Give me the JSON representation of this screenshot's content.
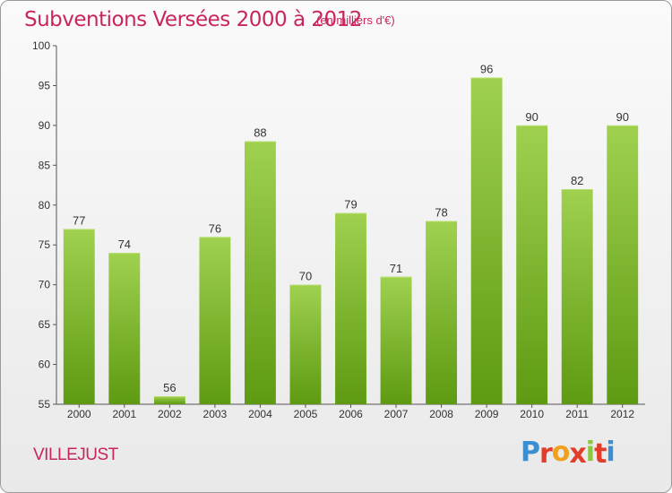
{
  "header": {
    "title": "Subventions Versées 2000 à 2012",
    "subtitle": "(en milliers d'€)"
  },
  "footer": {
    "commune": "VILLEJUST",
    "logo_letters": [
      "P",
      "r",
      "o",
      "x",
      "i",
      "t",
      "i"
    ],
    "logo_colors": [
      "#3b8fd0",
      "#e23c2a",
      "#f0a01e",
      "#e23c2a",
      "#8cc63f",
      "#e23c2a",
      "#3b8fd0"
    ]
  },
  "colors": {
    "bar_top": "#9fd14f",
    "bar_bottom": "#5e9a12",
    "text_accent": "#c8265a"
  },
  "chart_data": {
    "type": "bar",
    "title": "Subventions Versées 2000 à 2012",
    "subtitle": "(en milliers d'€)",
    "xlabel": "",
    "ylabel": "",
    "categories": [
      "2000",
      "2001",
      "2002",
      "2003",
      "2004",
      "2005",
      "2006",
      "2007",
      "2008",
      "2009",
      "2010",
      "2011",
      "2012"
    ],
    "values": [
      77,
      74,
      56,
      76,
      88,
      70,
      79,
      71,
      78,
      96,
      90,
      82,
      90
    ],
    "ylim": [
      55,
      100
    ],
    "yticks": [
      55,
      60,
      65,
      70,
      75,
      80,
      85,
      90,
      95,
      100
    ],
    "grid": false,
    "legend": "none"
  }
}
